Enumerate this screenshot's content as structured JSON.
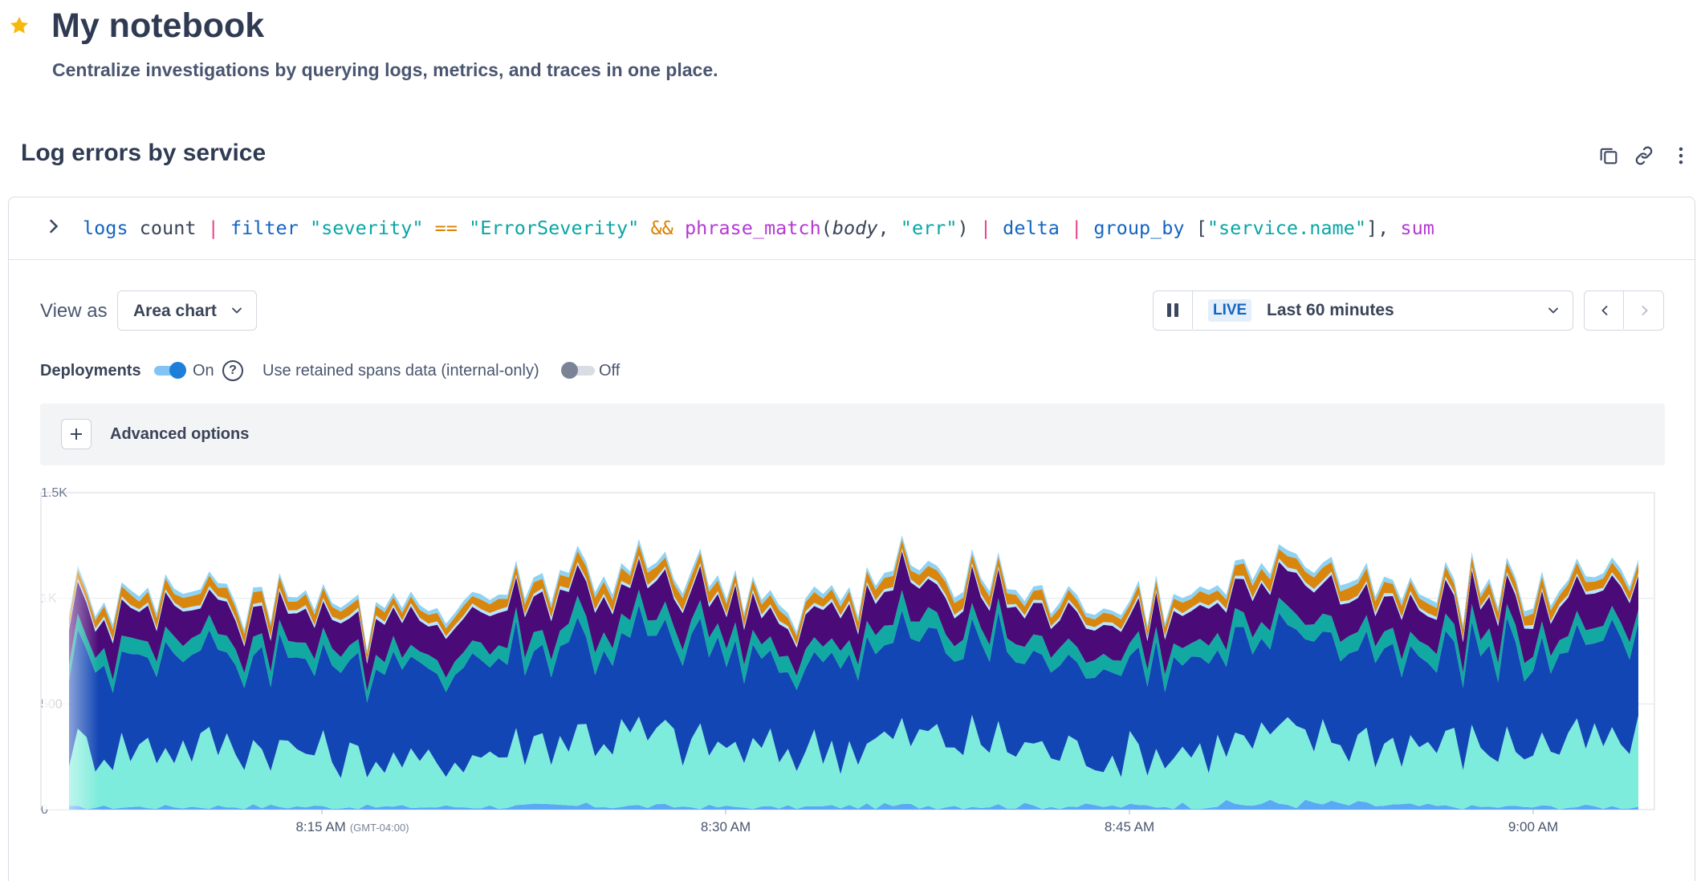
{
  "notebook": {
    "title": "My notebook",
    "subtitle": "Centralize investigations by querying logs, metrics, and traces in one place.",
    "starred": true
  },
  "panel": {
    "title": "Log errors by service",
    "actions": [
      "copy-icon",
      "link-icon",
      "more-vertical-icon"
    ],
    "query": {
      "tokens": [
        "logs",
        "count",
        "|",
        "filter",
        "\"severity\"",
        "==",
        "\"ErrorSeverity\"",
        "&&",
        "phrase_match",
        "(",
        "body",
        ",",
        "\"err\"",
        ")",
        "|",
        "delta",
        "|",
        "group_by",
        "[",
        "\"service.name\"",
        "],",
        "sum"
      ]
    },
    "view_as_label": "View as",
    "view_as_value": "Area chart",
    "live_badge": "LIVE",
    "time_range": "Last 60 minutes",
    "deployments_label": "Deployments",
    "deployments_toggle": "On",
    "retained_label": "Use retained spans data (internal-only)",
    "retained_toggle": "Off",
    "advanced_label": "Advanced options"
  },
  "colors": {
    "accent": "#1e7fd9",
    "live_badge_bg": "#e3effb",
    "series": [
      "#5aa9f5",
      "#7eecdc",
      "#1346b5",
      "#12a9a2",
      "#4a0a78",
      "#b8e5ff",
      "#d8860d",
      "#8fd3f4"
    ]
  },
  "chart_data": {
    "type": "area",
    "stacked": true,
    "y_ticks": [
      "1.5K",
      "1K",
      "500",
      "0"
    ],
    "ylim": [
      0,
      1500
    ],
    "x_ticks": [
      {
        "label": "8:15 AM",
        "sub": "(GMT-04:00)"
      },
      {
        "label": "8:30 AM",
        "sub": ""
      },
      {
        "label": "8:45 AM",
        "sub": ""
      },
      {
        "label": "9:00 AM",
        "sub": ""
      }
    ],
    "x_range": [
      "8:04 AM",
      "9:04 AM"
    ],
    "grid": true,
    "series": [
      {
        "values_approx": [
          10,
          15,
          12,
          18,
          10,
          20,
          15,
          30,
          12,
          14
        ]
      },
      {
        "values_approx": [
          280,
          300,
          200,
          350,
          260,
          330,
          240,
          310,
          290,
          300
        ]
      },
      {
        "values_approx": [
          430,
          450,
          420,
          460,
          440,
          450,
          430,
          455,
          445,
          440
        ]
      },
      {
        "values_approx": [
          70,
          80,
          60,
          90,
          75,
          85,
          70,
          80,
          78,
          75
        ]
      },
      {
        "values_approx": [
          150,
          140,
          160,
          170,
          150,
          160,
          145,
          170,
          155,
          160
        ]
      },
      {
        "values_approx": [
          15,
          15,
          15,
          15,
          15,
          15,
          15,
          15,
          15,
          15
        ]
      },
      {
        "values_approx": [
          40,
          50,
          35,
          55,
          45,
          50,
          40,
          55,
          48,
          45
        ]
      },
      {
        "values_approx": [
          20,
          22,
          20,
          25,
          22,
          24,
          20,
          25,
          22,
          22
        ]
      }
    ]
  }
}
